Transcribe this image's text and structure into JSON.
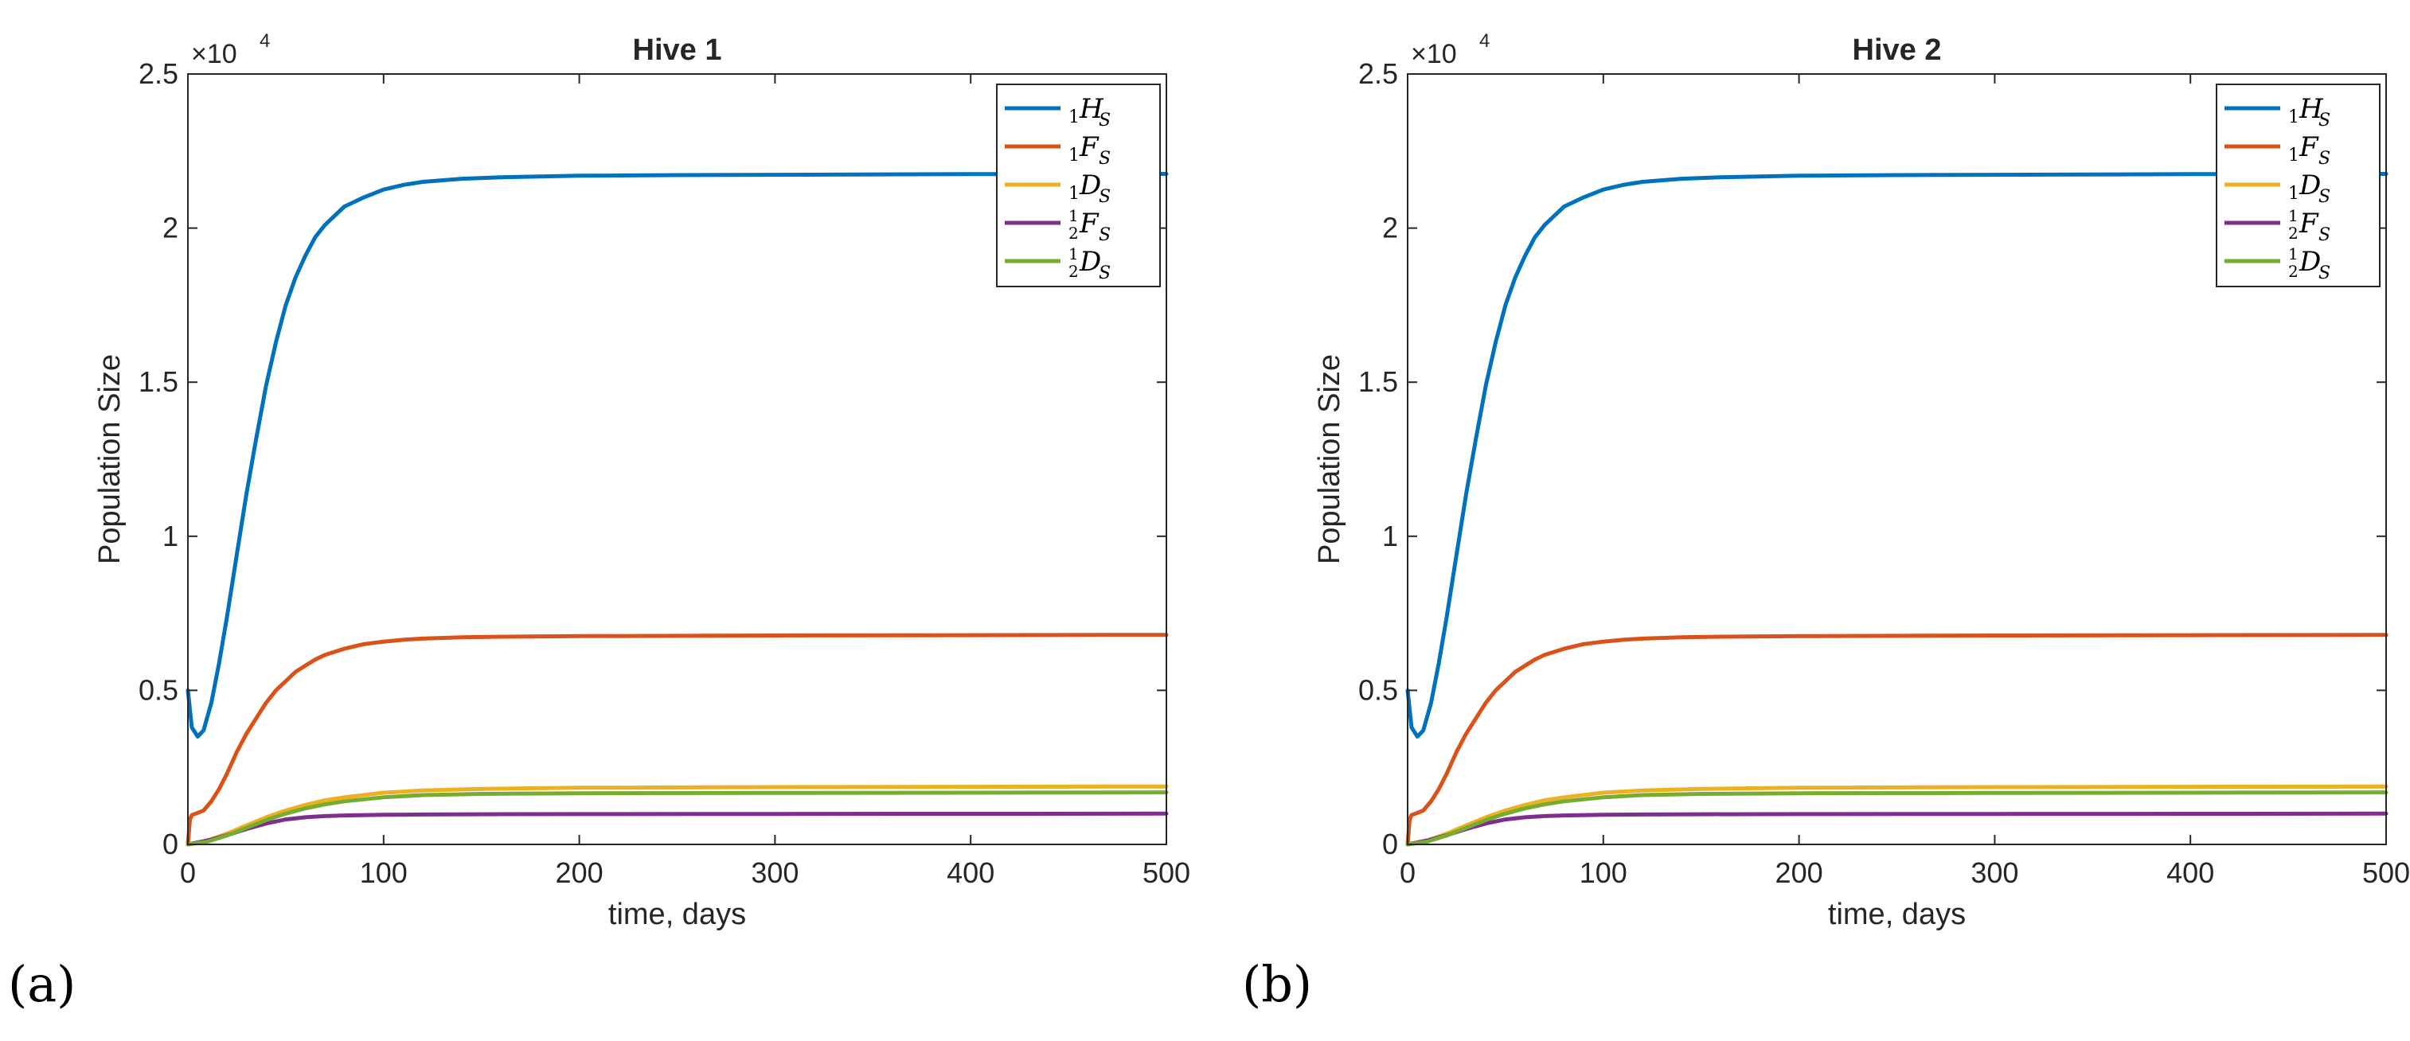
{
  "colors": {
    "H": "#0072BD",
    "F": "#D95319",
    "D": "#EDB120",
    "F12": "#7E2F8E",
    "D12": "#77AC30",
    "axis": "#262626"
  },
  "panel_labels": [
    "(a)",
    "(b)"
  ],
  "chart_data": [
    {
      "type": "line",
      "title": "Hive 1",
      "xlabel": "time, days",
      "ylabel": "Population Size",
      "xlim": [
        0,
        500
      ],
      "ylim": [
        0,
        25000
      ],
      "xticks": [
        0,
        100,
        200,
        300,
        400,
        500
      ],
      "xtick_labels": [
        "0",
        "100",
        "200",
        "300",
        "400",
        "500"
      ],
      "yticks": [
        0,
        5000,
        10000,
        15000,
        20000,
        25000
      ],
      "ytick_labels": [
        "0",
        "0.5",
        "1",
        "1.5",
        "2",
        "2.5"
      ],
      "y_exponent_label": "×10",
      "y_exponent_power": "4",
      "legend_position": "top-right",
      "series": [
        {
          "key": "H",
          "legend_pre": "1",
          "legend_sym": "H",
          "legend_sup": "",
          "legend_sub": "S",
          "x": [
            0,
            2,
            5,
            8,
            12,
            16,
            20,
            25,
            30,
            35,
            40,
            45,
            50,
            55,
            60,
            65,
            70,
            80,
            90,
            100,
            110,
            120,
            140,
            160,
            200,
            250,
            300,
            400,
            500
          ],
          "y": [
            5000,
            3800,
            3500,
            3700,
            4600,
            5900,
            7400,
            9400,
            11400,
            13200,
            14900,
            16300,
            17500,
            18400,
            19100,
            19700,
            20100,
            20700,
            21000,
            21250,
            21400,
            21500,
            21600,
            21650,
            21700,
            21720,
            21730,
            21750,
            21760
          ]
        },
        {
          "key": "F",
          "legend_pre": "1",
          "legend_sym": "F",
          "legend_sup": "",
          "legend_sub": "S",
          "x": [
            0,
            1,
            2,
            4,
            8,
            12,
            16,
            20,
            25,
            30,
            35,
            40,
            45,
            50,
            55,
            60,
            65,
            70,
            80,
            90,
            100,
            110,
            120,
            140,
            160,
            200,
            300,
            400,
            500
          ],
          "y": [
            0,
            800,
            950,
            1000,
            1100,
            1400,
            1800,
            2300,
            3000,
            3600,
            4100,
            4600,
            5000,
            5300,
            5600,
            5800,
            6000,
            6150,
            6350,
            6500,
            6580,
            6640,
            6680,
            6720,
            6740,
            6760,
            6780,
            6790,
            6800
          ]
        },
        {
          "key": "D",
          "legend_pre": "1",
          "legend_sym": "D",
          "legend_sup": "",
          "legend_sub": "S",
          "x": [
            0,
            10,
            20,
            30,
            40,
            50,
            60,
            70,
            80,
            100,
            120,
            150,
            200,
            300,
            400,
            500
          ],
          "y": [
            0,
            120,
            350,
            620,
            880,
            1100,
            1280,
            1430,
            1530,
            1680,
            1750,
            1800,
            1840,
            1860,
            1870,
            1880
          ]
        },
        {
          "key": "F12",
          "legend_pre": "2",
          "legend_sym": "F",
          "legend_sup": "1",
          "legend_sub": "S",
          "x": [
            0,
            10,
            20,
            30,
            40,
            50,
            60,
            70,
            80,
            100,
            120,
            150,
            200,
            300,
            400,
            500
          ],
          "y": [
            0,
            130,
            300,
            500,
            680,
            810,
            880,
            920,
            940,
            960,
            970,
            980,
            985,
            990,
            995,
            1000
          ]
        },
        {
          "key": "D12",
          "legend_pre": "2",
          "legend_sym": "D",
          "legend_sup": "1",
          "legend_sub": "S",
          "x": [
            0,
            10,
            20,
            30,
            40,
            50,
            60,
            70,
            80,
            100,
            120,
            150,
            200,
            300,
            400,
            500
          ],
          "y": [
            0,
            90,
            290,
            540,
            790,
            1000,
            1170,
            1300,
            1400,
            1530,
            1600,
            1640,
            1660,
            1670,
            1680,
            1690
          ]
        }
      ]
    },
    {
      "type": "line",
      "title": "Hive 2",
      "xlabel": "time, days",
      "ylabel": "Population Size",
      "xlim": [
        0,
        500
      ],
      "ylim": [
        0,
        25000
      ],
      "xticks": [
        0,
        100,
        200,
        300,
        400,
        500
      ],
      "xtick_labels": [
        "0",
        "100",
        "200",
        "300",
        "400",
        "500"
      ],
      "yticks": [
        0,
        5000,
        10000,
        15000,
        20000,
        25000
      ],
      "ytick_labels": [
        "0",
        "0.5",
        "1",
        "1.5",
        "2",
        "2.5"
      ],
      "y_exponent_label": "×10",
      "y_exponent_power": "4",
      "legend_position": "top-right",
      "series": [
        {
          "key": "H",
          "legend_pre": "1",
          "legend_sym": "H",
          "legend_sup": "",
          "legend_sub": "S",
          "x": [
            0,
            2,
            5,
            8,
            12,
            16,
            20,
            25,
            30,
            35,
            40,
            45,
            50,
            55,
            60,
            65,
            70,
            80,
            90,
            100,
            110,
            120,
            140,
            160,
            200,
            250,
            300,
            400,
            500
          ],
          "y": [
            5000,
            3800,
            3500,
            3700,
            4600,
            5900,
            7400,
            9400,
            11400,
            13200,
            14900,
            16300,
            17500,
            18400,
            19100,
            19700,
            20100,
            20700,
            21000,
            21250,
            21400,
            21500,
            21600,
            21650,
            21700,
            21720,
            21730,
            21750,
            21760
          ]
        },
        {
          "key": "F",
          "legend_pre": "1",
          "legend_sym": "F",
          "legend_sup": "",
          "legend_sub": "S",
          "x": [
            0,
            1,
            2,
            4,
            8,
            12,
            16,
            20,
            25,
            30,
            35,
            40,
            45,
            50,
            55,
            60,
            65,
            70,
            80,
            90,
            100,
            110,
            120,
            140,
            160,
            200,
            300,
            400,
            500
          ],
          "y": [
            0,
            800,
            950,
            1000,
            1100,
            1400,
            1800,
            2300,
            3000,
            3600,
            4100,
            4600,
            5000,
            5300,
            5600,
            5800,
            6000,
            6150,
            6350,
            6500,
            6580,
            6640,
            6680,
            6720,
            6740,
            6760,
            6780,
            6790,
            6800
          ]
        },
        {
          "key": "D",
          "legend_pre": "1",
          "legend_sym": "D",
          "legend_sup": "",
          "legend_sub": "S",
          "x": [
            0,
            10,
            20,
            30,
            40,
            50,
            60,
            70,
            80,
            100,
            120,
            150,
            200,
            300,
            400,
            500
          ],
          "y": [
            0,
            120,
            350,
            620,
            880,
            1100,
            1280,
            1430,
            1530,
            1680,
            1750,
            1800,
            1840,
            1860,
            1870,
            1880
          ]
        },
        {
          "key": "F12",
          "legend_pre": "2",
          "legend_sym": "F",
          "legend_sup": "1",
          "legend_sub": "S",
          "x": [
            0,
            10,
            20,
            30,
            40,
            50,
            60,
            70,
            80,
            100,
            120,
            150,
            200,
            300,
            400,
            500
          ],
          "y": [
            0,
            130,
            300,
            500,
            680,
            810,
            880,
            920,
            940,
            960,
            970,
            980,
            985,
            990,
            995,
            1000
          ]
        },
        {
          "key": "D12",
          "legend_pre": "2",
          "legend_sym": "D",
          "legend_sup": "1",
          "legend_sub": "S",
          "x": [
            0,
            10,
            20,
            30,
            40,
            50,
            60,
            70,
            80,
            100,
            120,
            150,
            200,
            300,
            400,
            500
          ],
          "y": [
            0,
            90,
            290,
            540,
            790,
            1000,
            1170,
            1300,
            1400,
            1530,
            1600,
            1640,
            1660,
            1670,
            1680,
            1690
          ]
        }
      ]
    }
  ]
}
